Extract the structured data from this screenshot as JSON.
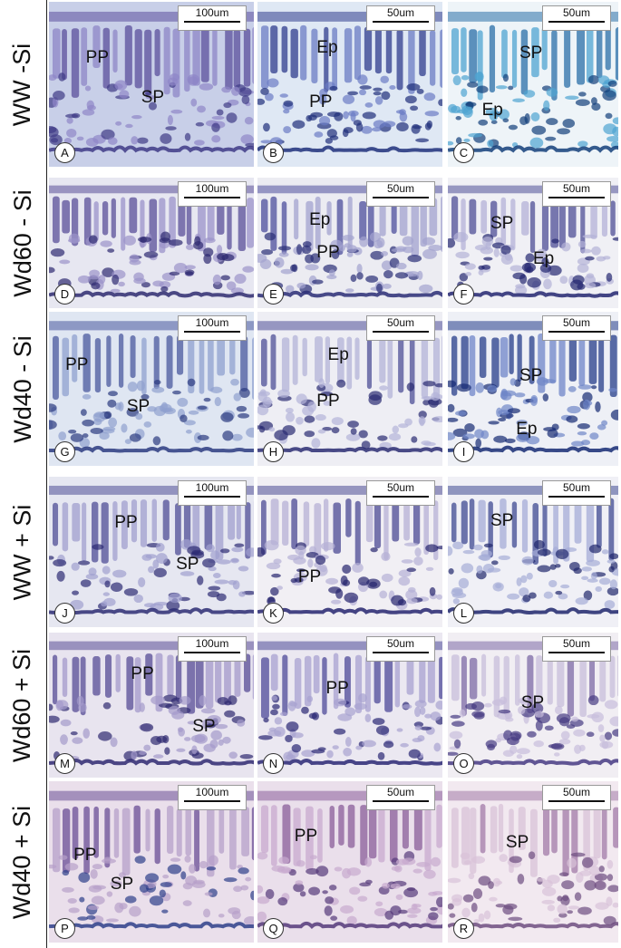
{
  "rows": [
    {
      "label": "WW -Si"
    },
    {
      "label": "Wd60 - Si"
    },
    {
      "label": "Wd40 - Si"
    },
    {
      "label": "WW + Si"
    },
    {
      "label": "Wd60 + Si"
    },
    {
      "label": "Wd40 + Si"
    }
  ],
  "panels": [
    {
      "letter": "A",
      "scale": "100um",
      "labels": [
        "PP",
        "SP"
      ]
    },
    {
      "letter": "B",
      "scale": "50um",
      "labels": [
        "Ep",
        "PP"
      ]
    },
    {
      "letter": "C",
      "scale": "50um",
      "labels": [
        "SP",
        "Ep"
      ]
    },
    {
      "letter": "D",
      "scale": "100um",
      "labels": []
    },
    {
      "letter": "E",
      "scale": "50um",
      "labels": [
        "Ep",
        "PP"
      ]
    },
    {
      "letter": "F",
      "scale": "50um",
      "labels": [
        "SP",
        "Ep"
      ]
    },
    {
      "letter": "G",
      "scale": "100um",
      "labels": [
        "PP",
        "SP"
      ]
    },
    {
      "letter": "H",
      "scale": "50um",
      "labels": [
        "Ep",
        "PP"
      ]
    },
    {
      "letter": "I",
      "scale": "50um",
      "labels": [
        "SP",
        "Ep"
      ]
    },
    {
      "letter": "J",
      "scale": "100um",
      "labels": [
        "PP",
        "SP"
      ]
    },
    {
      "letter": "K",
      "scale": "50um",
      "labels": [
        "PP"
      ]
    },
    {
      "letter": "L",
      "scale": "50um",
      "labels": [
        "SP"
      ]
    },
    {
      "letter": "M",
      "scale": "100um",
      "labels": [
        "PP",
        "SP"
      ]
    },
    {
      "letter": "N",
      "scale": "50um",
      "labels": [
        "PP"
      ]
    },
    {
      "letter": "O",
      "scale": "50um",
      "labels": [
        "SP"
      ]
    },
    {
      "letter": "P",
      "scale": "100um",
      "labels": [
        "PP",
        "SP"
      ]
    },
    {
      "letter": "Q",
      "scale": "50um",
      "labels": [
        "PP"
      ]
    },
    {
      "letter": "R",
      "scale": "50um",
      "labels": [
        "SP"
      ]
    }
  ]
}
